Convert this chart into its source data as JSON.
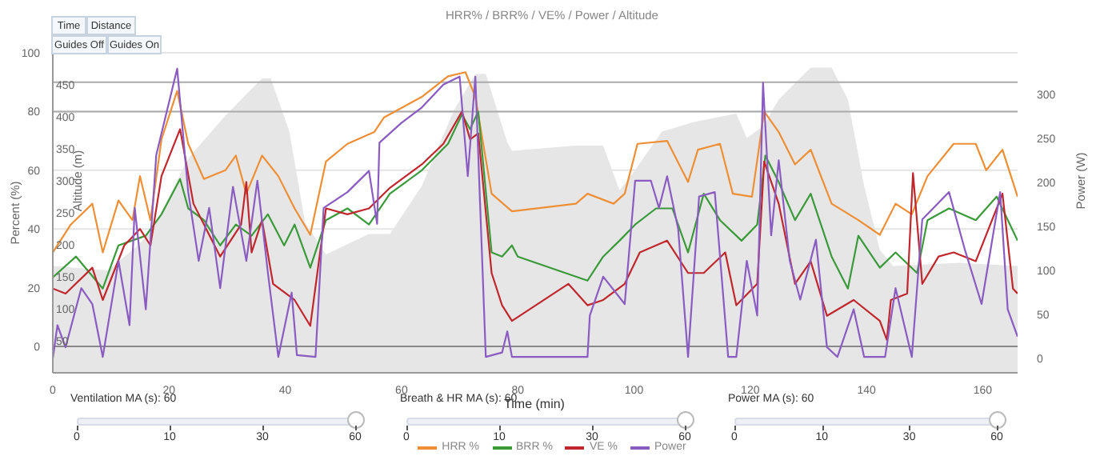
{
  "chart_data": {
    "type": "line",
    "title": "HRR% / BRR% / VE% / Power / Altitude",
    "xlabel": "Time (min)",
    "ylabel": "Percent (%)",
    "y2label": "Power (W)",
    "y3label": "Altitude (m)",
    "annotations": [
      "Time",
      "Distance",
      "Guides Off",
      "Guides On",
      "Ventilation MA (s): 60",
      "Breath & HR MA (s): 60",
      "Power MA (s): 60",
      "0",
      "10",
      "30",
      "60"
    ],
    "xlim": [
      0,
      166
    ],
    "xticks": [
      0,
      20,
      40,
      60,
      80,
      100,
      120,
      140,
      160
    ],
    "ylim": [
      -9,
      100
    ],
    "yticks": [
      0,
      20,
      40,
      60,
      80,
      100
    ],
    "y2lim": [
      -16,
      347
    ],
    "y2ticks": [
      0,
      50,
      100,
      150,
      200,
      250,
      300
    ],
    "y3lim": [
      0,
      500
    ],
    "y3ticks": [
      50,
      100,
      150,
      200,
      250,
      300,
      350,
      400,
      450
    ],
    "grid": "y",
    "legend": "bottom",
    "ref_lines": [
      {
        "axis": "y",
        "value": 0,
        "color": "#888888"
      },
      {
        "axis": "y",
        "value": 80,
        "color": "#aaaaaa"
      },
      {
        "axis": "y",
        "value": 90,
        "color": "#aaaaaa"
      }
    ],
    "series": [
      {
        "type": "area",
        "axis": "y3",
        "color": "#e6e6e6",
        "x": [
          0,
          9.5,
          15,
          17.8,
          23.3,
          29.7,
          36,
          37.5,
          40.7,
          43.4,
          47,
          54.4,
          58,
          63.5,
          69,
          72.7,
          74.5,
          78.2,
          79,
          90,
          94.7,
          97.5,
          100.2,
          104.8,
          110.3,
          117.6,
          119.4,
          122.2,
          124.9,
          130.4,
          134,
          136.8,
          139.6,
          142.3,
          144.6,
          156,
          166
        ],
        "values": [
          167,
          160,
          202,
          235,
          335,
          402,
          460,
          460,
          377,
          235,
          185,
          217,
          217,
          292,
          410,
          467,
          467,
          360,
          347,
          355,
          355,
          285,
          317,
          377,
          392,
          405,
          367,
          385,
          427,
          477,
          477,
          427,
          292,
          192,
          167,
          172,
          167
        ]
      },
      {
        "name": "HRR %",
        "color": "#ee8f35",
        "x": [
          0,
          3.1,
          6.8,
          8.6,
          11.3,
          13.7,
          15,
          16.8,
          18.7,
          21.4,
          23.3,
          26,
          29.7,
          31.5,
          33.3,
          36,
          38.8,
          41.6,
          44.3,
          47,
          50.7,
          55.3,
          57,
          63.5,
          68,
          71,
          72.7,
          75.5,
          79,
          90,
          92,
          96.5,
          98.4,
          100.6,
          105.7,
          109.3,
          111,
          114.8,
          117,
          120.3,
          122.4,
          124.9,
          127.7,
          130.4,
          134,
          138.6,
          142.3,
          145,
          147.8,
          150.5,
          155,
          158.8,
          160.6,
          163.4,
          166
        ],
        "values": [
          32,
          41.5,
          48.6,
          32,
          49.7,
          43,
          58,
          43,
          70.5,
          87,
          69,
          57,
          60,
          65,
          52,
          65,
          58,
          47,
          38,
          63,
          69,
          73,
          78,
          85,
          92,
          93.4,
          85,
          52,
          46,
          48.6,
          52,
          48.6,
          52,
          69,
          70,
          56,
          67,
          69,
          52,
          51,
          80,
          73,
          62,
          67,
          48.6,
          43,
          38,
          48.6,
          45,
          58,
          69,
          69,
          60,
          67,
          51
        ]
      },
      {
        "name": "BRR %",
        "color": "#3a9a3a",
        "x": [
          0,
          4,
          8.6,
          11.3,
          16,
          18.7,
          21.9,
          23.3,
          26,
          28.8,
          31.5,
          34.2,
          37,
          39.8,
          41.6,
          44.3,
          47,
          50.7,
          54.4,
          58,
          63.5,
          68,
          70.4,
          71.8,
          73.2,
          75.5,
          77.3,
          79,
          80,
          92,
          94.7,
          97.5,
          100.2,
          103.8,
          106.6,
          109.3,
          112,
          114.8,
          118.5,
          121.2,
          122.6,
          124.9,
          127.7,
          130.4,
          134,
          136.8,
          138.6,
          142.3,
          145,
          148.7,
          150.5,
          154.2,
          158.8,
          162.4,
          166
        ],
        "values": [
          23.5,
          30.6,
          19.7,
          34.4,
          37.7,
          45,
          57,
          47,
          43,
          34.4,
          41.5,
          37.7,
          45,
          34.4,
          41.5,
          26.8,
          43,
          47,
          41.5,
          52,
          60,
          69,
          79,
          74,
          80,
          32,
          30.6,
          34.4,
          30.6,
          22.4,
          30.6,
          36,
          41.5,
          47,
          47,
          32,
          52,
          43,
          36,
          41.5,
          65,
          56,
          43,
          52,
          30.6,
          19.7,
          37.7,
          26.8,
          32,
          25,
          43,
          47,
          43,
          51,
          36
        ]
      },
      {
        "name": "VE %",
        "color": "#c0272d",
        "x": [
          0,
          2.2,
          6.8,
          8.6,
          12.3,
          15,
          16.8,
          18.7,
          21.9,
          24.2,
          28.8,
          32.4,
          33.3,
          34.2,
          36,
          37.9,
          41.6,
          44.3,
          47,
          50.7,
          54.4,
          58,
          63.5,
          67.2,
          70.4,
          71.8,
          73.2,
          75.5,
          77.3,
          79,
          88.7,
          92,
          94.7,
          98.4,
          101,
          105.7,
          109.3,
          112,
          115.7,
          117.6,
          121.2,
          122.4,
          124.9,
          127.7,
          130.4,
          133.2,
          137.8,
          142.3,
          143.5,
          144.2,
          147,
          148,
          149.6,
          152.4,
          155,
          158.8,
          163.4,
          165.2,
          166
        ],
        "values": [
          19.7,
          18,
          26.8,
          15.8,
          34.4,
          40,
          34.4,
          58,
          74,
          48.6,
          30.6,
          41.5,
          56,
          32,
          43,
          21.3,
          15.8,
          7,
          47,
          45,
          47,
          54,
          62,
          69,
          80,
          70.5,
          72.6,
          25,
          14,
          8.7,
          21.3,
          14,
          15.8,
          21.3,
          32,
          36,
          25,
          25,
          32,
          14,
          21.3,
          63,
          48.6,
          21.3,
          29,
          10.4,
          15.8,
          8.7,
          2.2,
          15.8,
          18,
          59,
          21.3,
          30.6,
          32,
          29,
          52,
          19.7,
          18
        ]
      },
      {
        "name": "Power",
        "axis": "y2",
        "color": "#8a5cc2",
        "x": [
          0,
          0.8,
          2.2,
          4.9,
          6.8,
          8.6,
          11.3,
          13.2,
          14.1,
          16,
          17.8,
          21.4,
          23.3,
          25.1,
          26.9,
          28.8,
          31,
          33.3,
          35.2,
          37,
          38.8,
          41.1,
          42,
          45.2,
          46.6,
          50.7,
          54.4,
          55.8,
          56.2,
          59.9,
          63.5,
          67.2,
          70,
          71.4,
          72.7,
          74.5,
          77.3,
          78.2,
          79,
          92,
          92.4,
          94.7,
          98.4,
          100.2,
          102.9,
          104.3,
          105.7,
          107.6,
          109.3,
          111.2,
          113.9,
          116.2,
          117.6,
          119.4,
          121.2,
          122.2,
          123.6,
          124.9,
          126.8,
          128.6,
          131.3,
          133.2,
          135,
          137.8,
          139.6,
          143.2,
          145,
          147.8,
          149.6,
          154.2,
          157,
          159.8,
          163,
          164.3,
          166
        ],
        "values": [
          0,
          38,
          13,
          80,
          62,
          2,
          111,
          38,
          171,
          56,
          231,
          329,
          189,
          111,
          171,
          80,
          195,
          111,
          202,
          98,
          2,
          75,
          4,
          2,
          171,
          189,
          213,
          153,
          245,
          267,
          285,
          311,
          320,
          207,
          320,
          2,
          7,
          31,
          2,
          2,
          49,
          93,
          62,
          202,
          202,
          171,
          207,
          147,
          2,
          184,
          189,
          2,
          2,
          111,
          49,
          313,
          140,
          225,
          111,
          67,
          135,
          13,
          2,
          56,
          2,
          2,
          80,
          2,
          158,
          189,
          122,
          62,
          189,
          56,
          25
        ]
      }
    ]
  }
}
